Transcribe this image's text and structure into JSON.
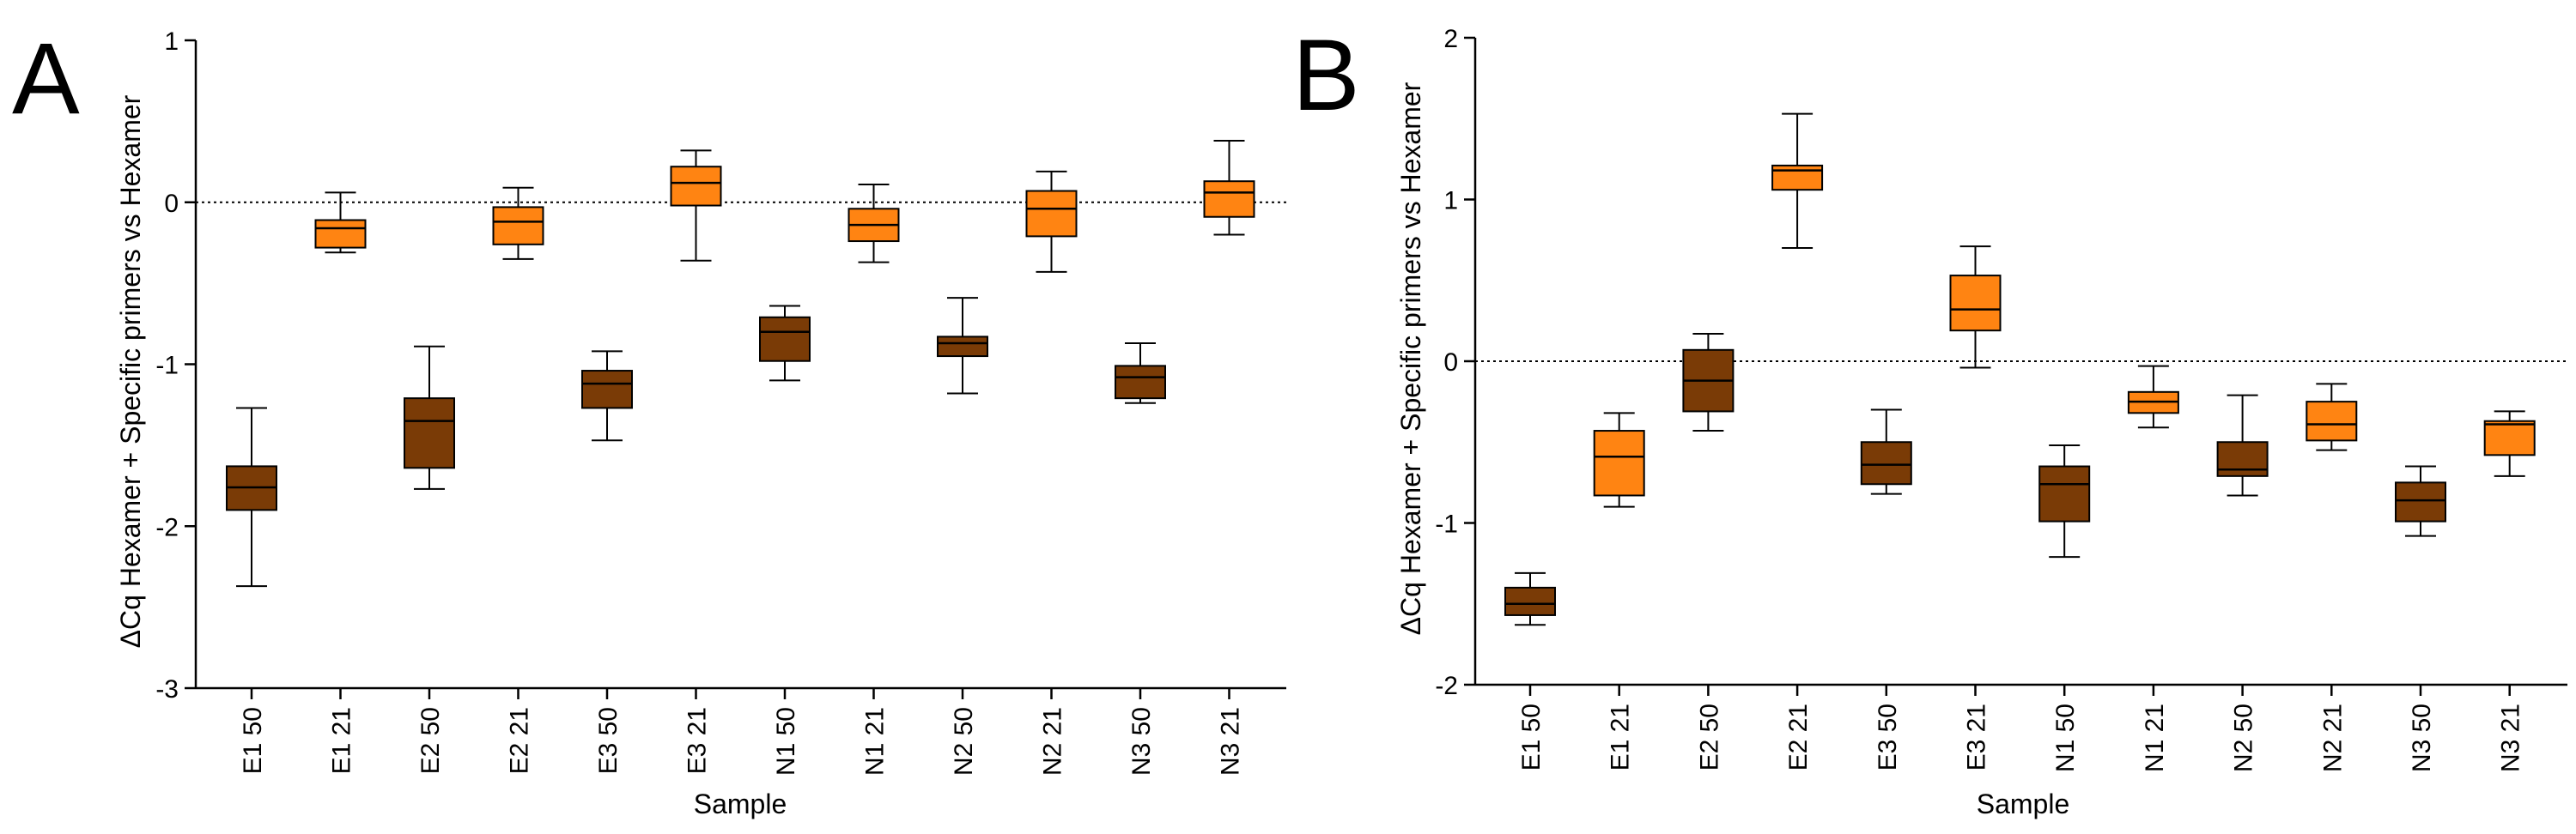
{
  "colors": {
    "dark": "#7a3b06",
    "light": "#ff8412",
    "stroke": "#000000"
  },
  "chart_data": [
    {
      "type": "box",
      "panel_label": "A",
      "xlabel": "Sample",
      "ylabel": "ΔCq Hexamer + Specific primers vs Hexamer",
      "ylim": [
        -3,
        1
      ],
      "yticks": [
        -3,
        -2,
        -1,
        0,
        1
      ],
      "ytick_labels": [
        "-3",
        "-2",
        "-1",
        "0",
        "1"
      ],
      "reference_line": 0,
      "categories": [
        "E1 50",
        "E1 21",
        "E2 50",
        "E2 21",
        "E3 50",
        "E3 21",
        "N1 50",
        "N1 21",
        "N2 50",
        "N2 21",
        "N3 50",
        "N3 21"
      ],
      "boxes": [
        {
          "min": -2.37,
          "q1": -1.9,
          "median": -1.76,
          "q3": -1.63,
          "max": -1.27,
          "color": "dark"
        },
        {
          "min": -0.31,
          "q1": -0.28,
          "median": -0.16,
          "q3": -0.11,
          "max": 0.06,
          "color": "light"
        },
        {
          "min": -1.77,
          "q1": -1.64,
          "median": -1.35,
          "q3": -1.21,
          "max": -0.89,
          "color": "dark"
        },
        {
          "min": -0.35,
          "q1": -0.26,
          "median": -0.12,
          "q3": -0.03,
          "max": 0.09,
          "color": "light"
        },
        {
          "min": -1.47,
          "q1": -1.27,
          "median": -1.12,
          "q3": -1.04,
          "max": -0.92,
          "color": "dark"
        },
        {
          "min": -0.36,
          "q1": -0.02,
          "median": 0.12,
          "q3": 0.22,
          "max": 0.32,
          "color": "light"
        },
        {
          "min": -1.1,
          "q1": -0.98,
          "median": -0.8,
          "q3": -0.71,
          "max": -0.64,
          "color": "dark"
        },
        {
          "min": -0.37,
          "q1": -0.24,
          "median": -0.14,
          "q3": -0.04,
          "max": 0.11,
          "color": "light"
        },
        {
          "min": -1.18,
          "q1": -0.95,
          "median": -0.87,
          "q3": -0.83,
          "max": -0.59,
          "color": "dark"
        },
        {
          "min": -0.43,
          "q1": -0.21,
          "median": -0.04,
          "q3": 0.07,
          "max": 0.19,
          "color": "light"
        },
        {
          "min": -1.24,
          "q1": -1.21,
          "median": -1.08,
          "q3": -1.01,
          "max": -0.87,
          "color": "dark"
        },
        {
          "min": -0.2,
          "q1": -0.09,
          "median": 0.06,
          "q3": 0.13,
          "max": 0.38,
          "color": "light"
        }
      ]
    },
    {
      "type": "box",
      "panel_label": "B",
      "xlabel": "Sample",
      "ylabel": "ΔCq Hexamer + Specific primers vs Hexamer",
      "ylim": [
        -2,
        2
      ],
      "yticks": [
        -2,
        -1,
        0,
        1,
        2
      ],
      "ytick_labels": [
        "-2",
        "-1",
        "0",
        "1",
        "2"
      ],
      "reference_line": 0,
      "categories": [
        "E1 50",
        "E1 21",
        "E2 50",
        "E2 21",
        "E3 50",
        "E3 21",
        "N1 50",
        "N1 21",
        "N2 50",
        "N2 21",
        "N3 50",
        "N3 21"
      ],
      "boxes": [
        {
          "min": -1.63,
          "q1": -1.57,
          "median": -1.5,
          "q3": -1.4,
          "max": -1.31,
          "color": "dark"
        },
        {
          "min": -0.9,
          "q1": -0.83,
          "median": -0.59,
          "q3": -0.43,
          "max": -0.32,
          "color": "light"
        },
        {
          "min": -0.43,
          "q1": -0.31,
          "median": -0.12,
          "q3": 0.07,
          "max": 0.17,
          "color": "dark"
        },
        {
          "min": 0.7,
          "q1": 1.06,
          "median": 1.18,
          "q3": 1.21,
          "max": 1.53,
          "color": "light"
        },
        {
          "min": -0.82,
          "q1": -0.76,
          "median": -0.64,
          "q3": -0.5,
          "max": -0.3,
          "color": "dark"
        },
        {
          "min": -0.04,
          "q1": 0.19,
          "median": 0.32,
          "q3": 0.53,
          "max": 0.71,
          "color": "light"
        },
        {
          "min": -1.21,
          "q1": -0.99,
          "median": -0.76,
          "q3": -0.65,
          "max": -0.52,
          "color": "dark"
        },
        {
          "min": -0.41,
          "q1": -0.32,
          "median": -0.25,
          "q3": -0.19,
          "max": -0.03,
          "color": "light"
        },
        {
          "min": -0.83,
          "q1": -0.71,
          "median": -0.67,
          "q3": -0.5,
          "max": -0.21,
          "color": "dark"
        },
        {
          "min": -0.55,
          "q1": -0.49,
          "median": -0.39,
          "q3": -0.25,
          "max": -0.14,
          "color": "light"
        },
        {
          "min": -1.08,
          "q1": -0.99,
          "median": -0.86,
          "q3": -0.75,
          "max": -0.65,
          "color": "dark"
        },
        {
          "min": -0.71,
          "q1": -0.58,
          "median": -0.39,
          "q3": -0.37,
          "max": -0.31,
          "color": "light"
        }
      ]
    }
  ]
}
